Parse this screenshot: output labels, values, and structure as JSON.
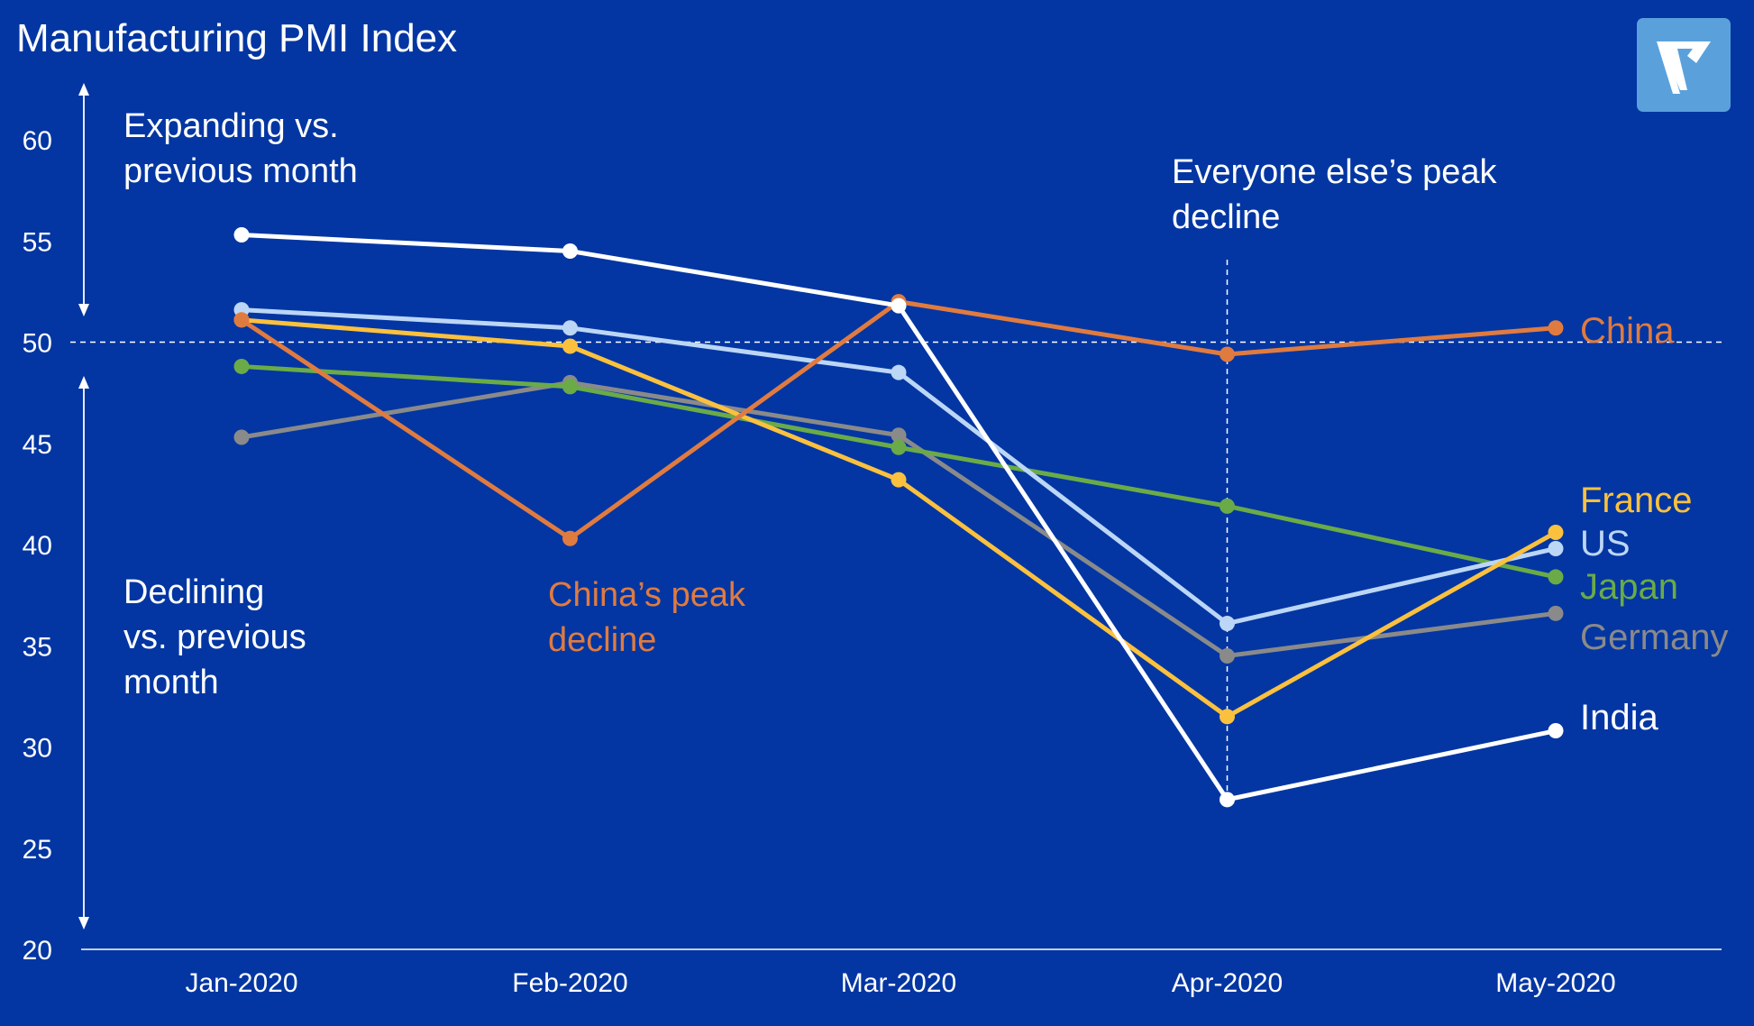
{
  "header": {
    "title": "Manufacturing PMI Index"
  },
  "annotations": {
    "expanding": "Expanding vs.\nprevious month",
    "declining": "Declining\nvs. previous\nmonth",
    "china_peak": "China’s peak\ndecline",
    "others_peak": "Everyone else’s peak\ndecline"
  },
  "logo": {
    "icon": "v-logo-icon",
    "color": "#5aa1dc"
  },
  "chart_data": {
    "type": "line",
    "title": "Manufacturing PMI Index",
    "categories": [
      "Jan-2020",
      "Feb-2020",
      "Mar-2020",
      "Apr-2020",
      "May-2020"
    ],
    "yticks": [
      "20",
      "25",
      "30",
      "35",
      "40",
      "45",
      "50",
      "55",
      "60"
    ],
    "ylim": [
      20,
      62
    ],
    "reference_line": 50,
    "vertical_marker_category": "Apr-2020",
    "grid": false,
    "legend": "inline-right",
    "series": [
      {
        "name": "China",
        "color": "#e07b40",
        "values": [
          51.1,
          40.3,
          52.0,
          49.4,
          50.7
        ]
      },
      {
        "name": "France",
        "color": "#fbc13e",
        "values": [
          51.1,
          49.8,
          43.2,
          31.5,
          40.6
        ]
      },
      {
        "name": "US",
        "color": "#bcd6f6",
        "values": [
          51.6,
          50.7,
          48.5,
          36.1,
          39.8
        ]
      },
      {
        "name": "Japan",
        "color": "#6aab48",
        "values": [
          48.8,
          47.8,
          44.8,
          41.9,
          38.4
        ]
      },
      {
        "name": "Germany",
        "color": "#8a8a8a",
        "values": [
          45.3,
          48.0,
          45.4,
          34.5,
          36.6
        ]
      },
      {
        "name": "India",
        "color": "#ffffff",
        "values": [
          55.3,
          54.5,
          51.8,
          27.4,
          30.8
        ]
      }
    ]
  }
}
